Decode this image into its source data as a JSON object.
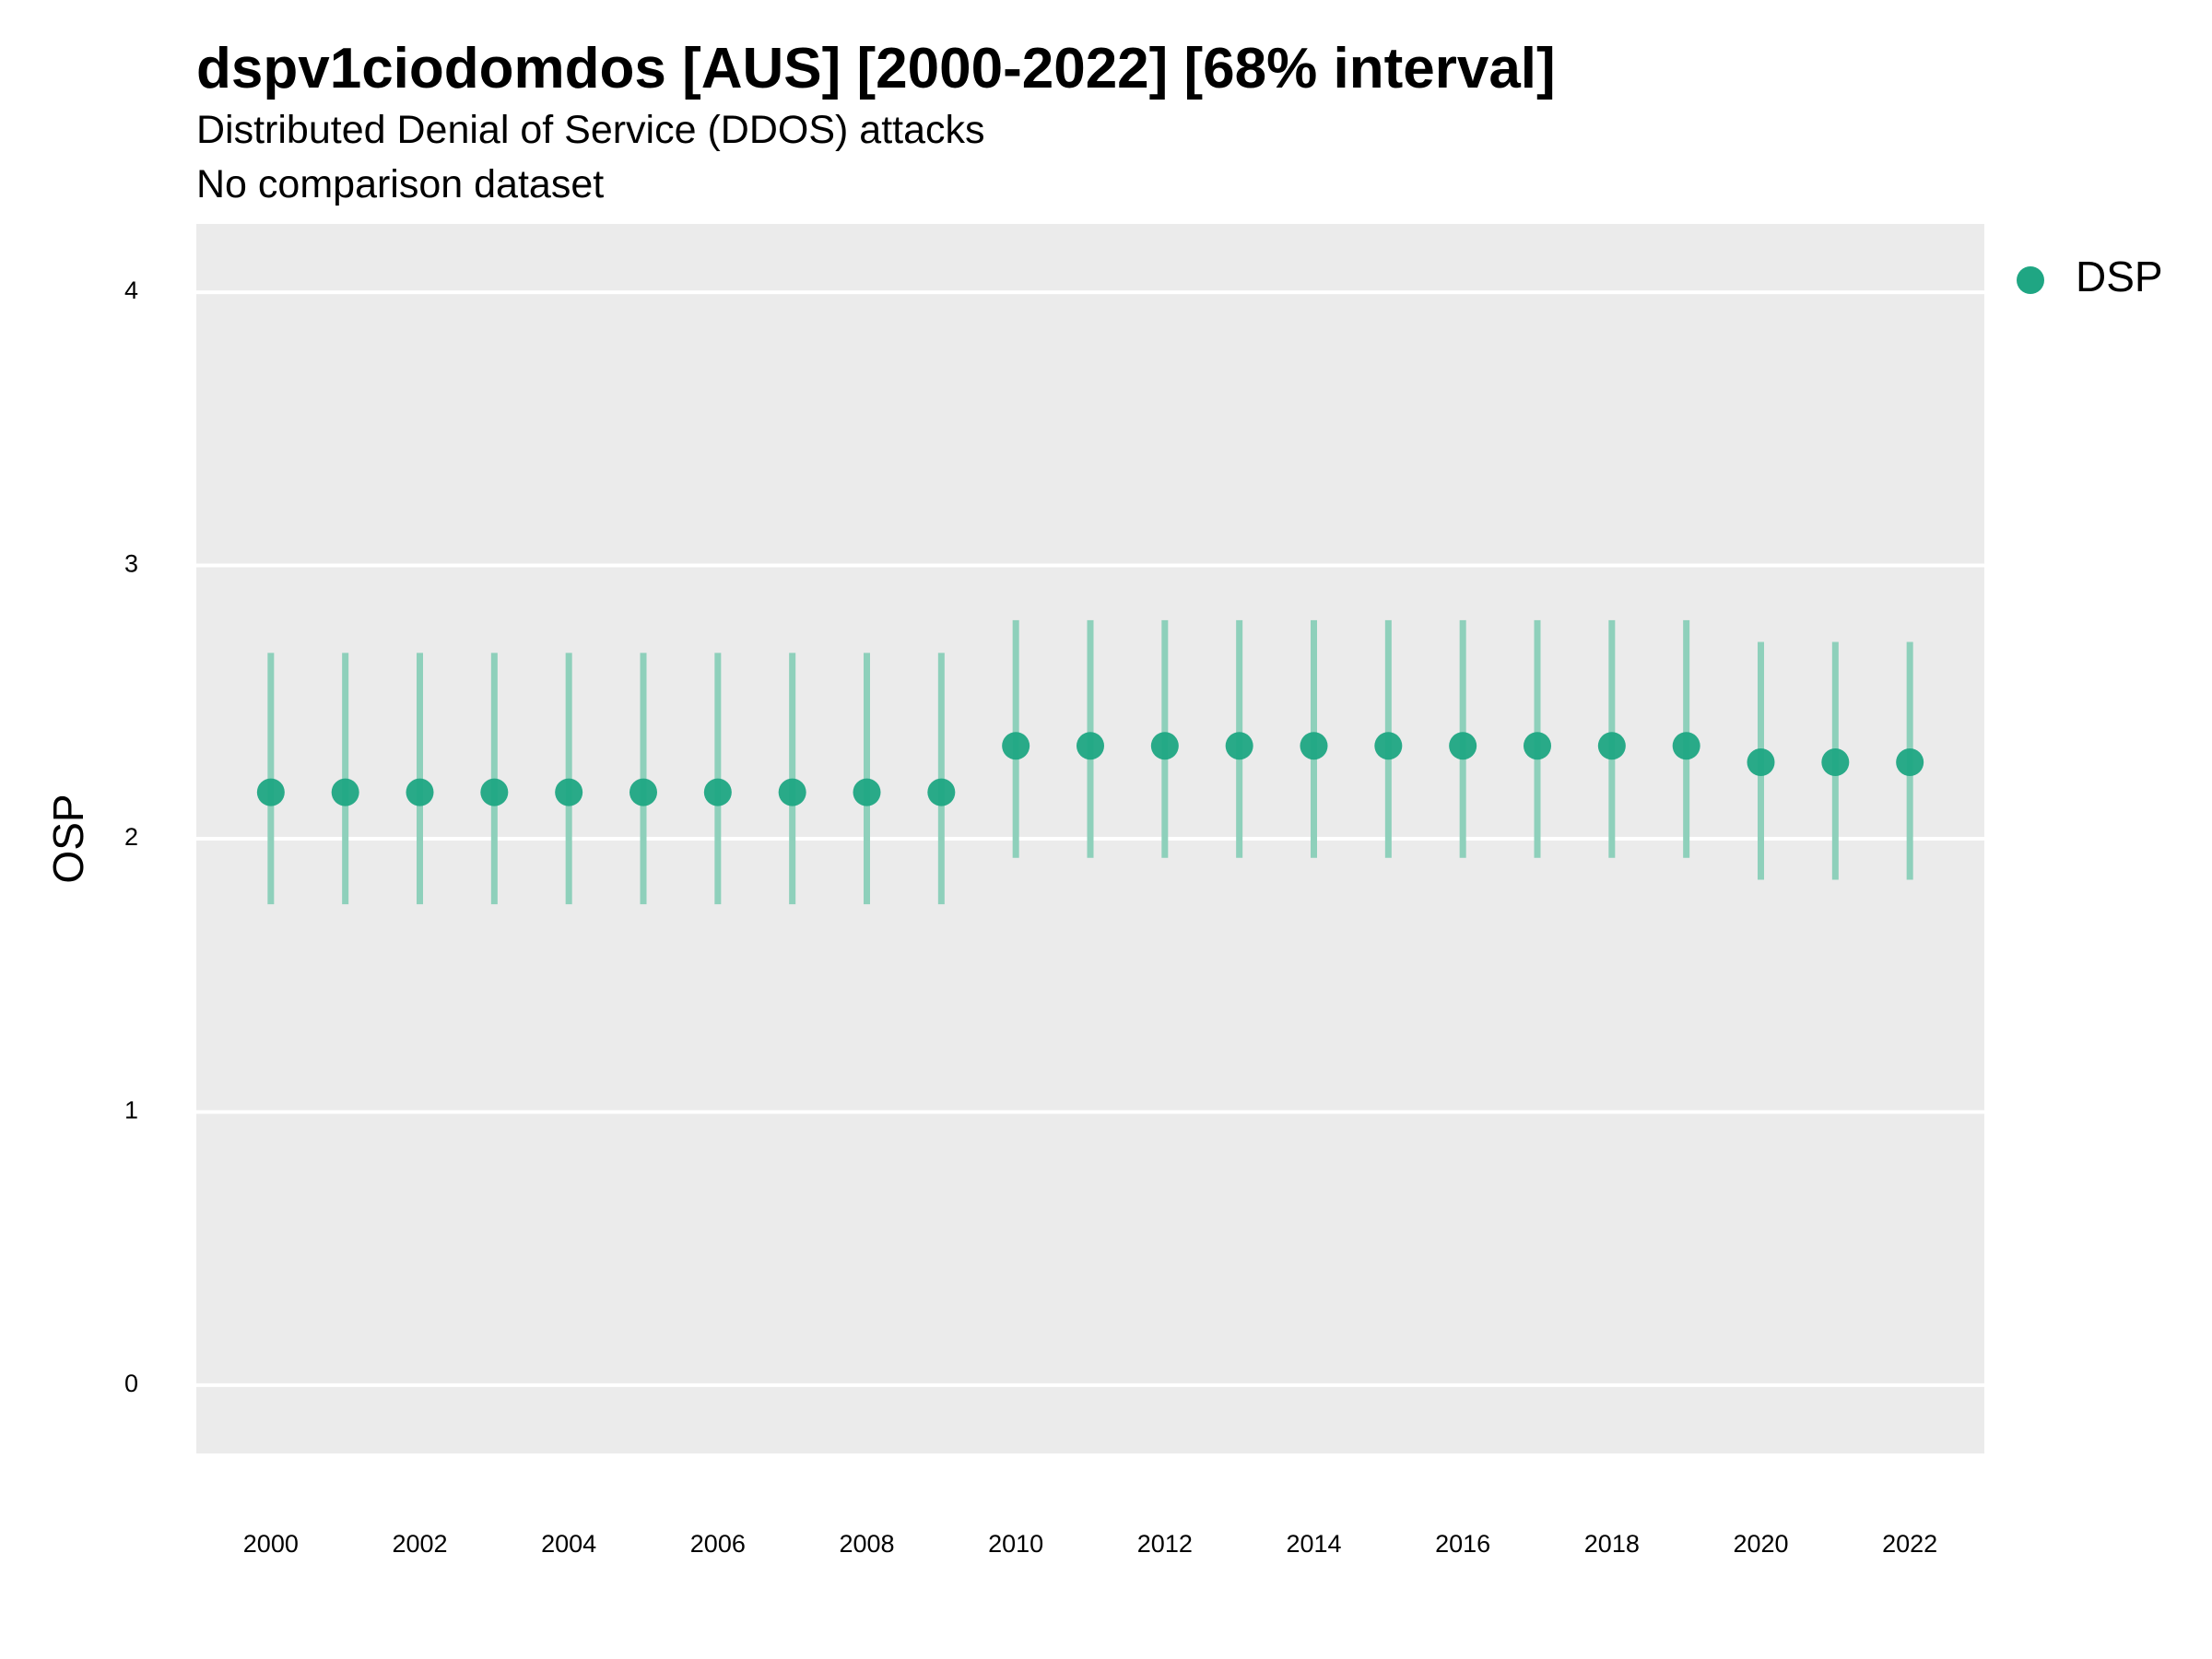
{
  "chart_data": {
    "type": "scatter",
    "title": "dspv1ciodomdos [AUS] [2000-2022] [68% interval]",
    "subtitle": "Distributed Denial of Service (DDOS) attacks",
    "caption": "No comparison dataset",
    "ylabel": "OSP",
    "xlabel": "",
    "ylim": [
      -0.25,
      4.25
    ],
    "xlim": [
      1999,
      2023
    ],
    "y_ticks": [
      "0",
      "1",
      "2",
      "3",
      "4"
    ],
    "x_ticks": [
      "2000",
      "2002",
      "2004",
      "2006",
      "2008",
      "2010",
      "2012",
      "2014",
      "2016",
      "2018",
      "2020",
      "2022"
    ],
    "grid": true,
    "legend_position": "right",
    "series": [
      {
        "name": "DSP",
        "color": "#1fa683",
        "x": [
          2000,
          2001,
          2002,
          2003,
          2004,
          2005,
          2006,
          2007,
          2008,
          2009,
          2010,
          2011,
          2012,
          2013,
          2014,
          2015,
          2016,
          2017,
          2018,
          2019,
          2020,
          2021,
          2022
        ],
        "y": [
          2.17,
          2.17,
          2.17,
          2.17,
          2.17,
          2.17,
          2.17,
          2.17,
          2.17,
          2.17,
          2.34,
          2.34,
          2.34,
          2.34,
          2.34,
          2.34,
          2.34,
          2.34,
          2.34,
          2.34,
          2.28,
          2.28,
          2.28
        ],
        "lower": [
          1.76,
          1.76,
          1.76,
          1.76,
          1.76,
          1.76,
          1.76,
          1.76,
          1.76,
          1.76,
          1.93,
          1.93,
          1.93,
          1.93,
          1.93,
          1.93,
          1.93,
          1.93,
          1.93,
          1.93,
          1.85,
          1.85,
          1.85
        ],
        "upper": [
          2.68,
          2.68,
          2.68,
          2.68,
          2.68,
          2.68,
          2.68,
          2.68,
          2.68,
          2.68,
          2.8,
          2.8,
          2.8,
          2.8,
          2.8,
          2.8,
          2.8,
          2.8,
          2.8,
          2.8,
          2.72,
          2.72,
          2.72
        ]
      }
    ]
  },
  "colors": {
    "panel_background": "#ebebeb",
    "grid": "#ffffff",
    "errorbar": "#8ed0bb",
    "point": "#1fa683"
  }
}
